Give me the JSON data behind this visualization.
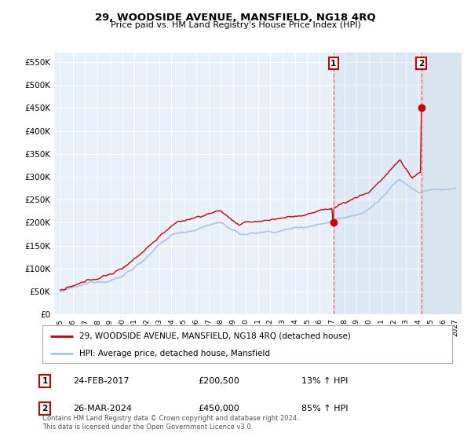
{
  "title": "29, WOODSIDE AVENUE, MANSFIELD, NG18 4RQ",
  "subtitle": "Price paid vs. HM Land Registry's House Price Index (HPI)",
  "ylabel_ticks": [
    "£0",
    "£50K",
    "£100K",
    "£150K",
    "£200K",
    "£250K",
    "£300K",
    "£350K",
    "£400K",
    "£450K",
    "£500K",
    "£550K"
  ],
  "ytick_values": [
    0,
    50000,
    100000,
    150000,
    200000,
    250000,
    300000,
    350000,
    400000,
    450000,
    500000,
    550000
  ],
  "ylim": [
    0,
    570000
  ],
  "xmin_year": 1995,
  "xmax_year": 2027,
  "xtick_years": [
    1995,
    1996,
    1997,
    1998,
    1999,
    2000,
    2001,
    2002,
    2003,
    2004,
    2005,
    2006,
    2007,
    2008,
    2009,
    2010,
    2011,
    2012,
    2013,
    2014,
    2015,
    2016,
    2017,
    2018,
    2019,
    2020,
    2021,
    2022,
    2023,
    2024,
    2025,
    2026,
    2027
  ],
  "hpi_color": "#a8c4e0",
  "sale_color": "#cc0000",
  "sale_dot_color": "#cc0000",
  "vline_color": "#ff6666",
  "plot_bg_color": "#e8f0fa",
  "hatch_bg_color": "#d8e4f0",
  "grid_color": "#ffffff",
  "legend_sale_label": "29, WOODSIDE AVENUE, MANSFIELD, NG18 4RQ (detached house)",
  "legend_hpi_label": "HPI: Average price, detached house, Mansfield",
  "transaction1_date": 2017.12,
  "transaction1_price": 200500,
  "transaction2_date": 2024.23,
  "transaction2_price": 450000,
  "transaction1_display": "24-FEB-2017",
  "transaction1_price_display": "£200,500",
  "transaction1_hpi_display": "13% ↑ HPI",
  "transaction2_display": "26-MAR-2024",
  "transaction2_price_display": "£450,000",
  "transaction2_hpi_display": "85% ↑ HPI",
  "bg_color": "#ffffff",
  "footer_text": "Contains HM Land Registry data © Crown copyright and database right 2024.\nThis data is licensed under the Open Government Licence v3.0."
}
